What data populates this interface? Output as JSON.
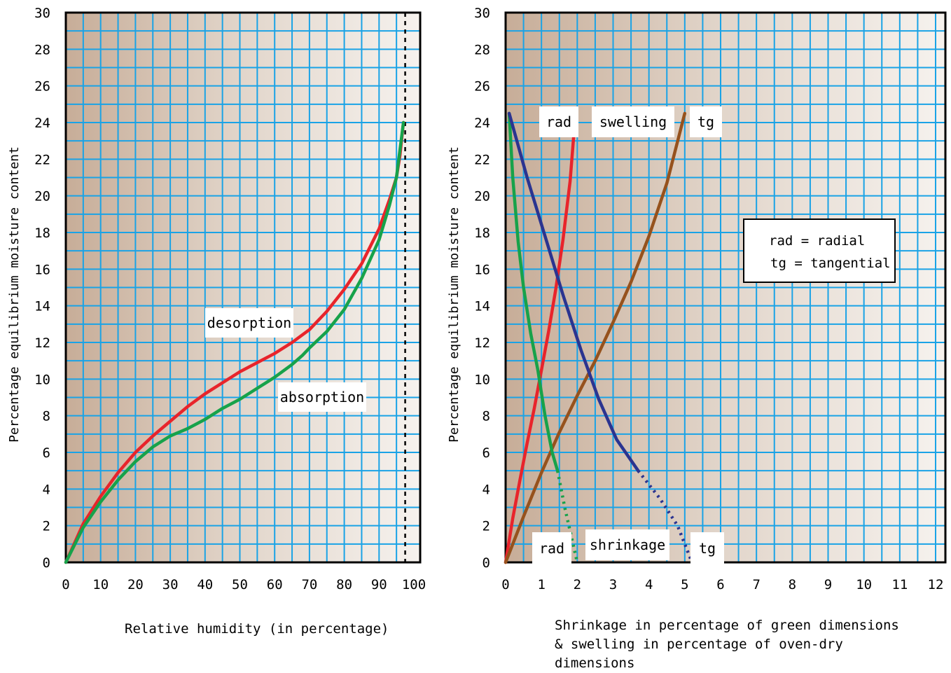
{
  "colors": {
    "grid": "#1aa3e6",
    "bg_left": "#c7ad98",
    "bg_right": "#f6f2ee",
    "red": "#e8242b",
    "green": "#17a24a",
    "navy": "#2b3490",
    "brown": "#96521d",
    "axis": "#000000"
  },
  "chart_data": [
    {
      "type": "line",
      "ylabel": "Percentage equilibrium moisture content",
      "xlabel": "Relative humidity (in percentage)",
      "xlim": [
        0,
        100
      ],
      "ylim": [
        0,
        30
      ],
      "x_ticks": [
        "0",
        "10",
        "20",
        "30",
        "40",
        "50",
        "60",
        "70",
        "80",
        "90",
        "100"
      ],
      "y_ticks": [
        "0",
        "2",
        "4",
        "6",
        "8",
        "10",
        "12",
        "14",
        "16",
        "18",
        "20",
        "22",
        "24",
        "26",
        "28",
        "30"
      ],
      "grid": true,
      "vertical_reference_x": 97.5,
      "series": [
        {
          "name": "desorption",
          "color": "red",
          "x": [
            0,
            5,
            10,
            15,
            20,
            25,
            30,
            35,
            40,
            45,
            50,
            55,
            60,
            65,
            70,
            75,
            80,
            85,
            90,
            93,
            95,
            96,
            97
          ],
          "y": [
            0,
            2.1,
            3.6,
            4.9,
            6.0,
            6.9,
            7.7,
            8.5,
            9.2,
            9.8,
            10.4,
            10.9,
            11.4,
            12.0,
            12.7,
            13.7,
            14.9,
            16.3,
            18.2,
            19.8,
            21.0,
            22.2,
            24.0
          ]
        },
        {
          "name": "absorption",
          "color": "green",
          "x": [
            0,
            5,
            10,
            15,
            20,
            25,
            30,
            35,
            40,
            45,
            50,
            55,
            60,
            65,
            68,
            70,
            75,
            80,
            85,
            90,
            93,
            95,
            97
          ],
          "y": [
            0,
            1.9,
            3.3,
            4.5,
            5.5,
            6.3,
            6.9,
            7.3,
            7.8,
            8.4,
            8.9,
            9.5,
            10.1,
            10.8,
            11.3,
            11.7,
            12.6,
            13.8,
            15.5,
            17.6,
            19.5,
            21.0,
            24.0
          ]
        }
      ],
      "annotations": [
        "desorption",
        "absorption"
      ]
    },
    {
      "type": "line",
      "ylabel": "Percentage equilibrium moisture content",
      "xlabel": "Shrinkage in percentage of green dimensions & swelling in percentage of oven-dry dimensions",
      "xlim": [
        0,
        12.5
      ],
      "ylim": [
        0,
        30
      ],
      "x_ticks": [
        "0",
        "1",
        "2",
        "3",
        "4",
        "5",
        "6",
        "7",
        "8",
        "9",
        "10",
        "11",
        "12"
      ],
      "y_ticks": [
        "0",
        "2",
        "4",
        "6",
        "8",
        "10",
        "12",
        "14",
        "16",
        "18",
        "20",
        "22",
        "24",
        "26",
        "28",
        "30"
      ],
      "grid": true,
      "legend_text": [
        "rad = radial",
        "tg = tangential"
      ],
      "legend_position": "right-middle",
      "series": [
        {
          "name": "rad swelling",
          "color": "red",
          "style": "solid",
          "x": [
            0,
            0.2,
            0.4,
            0.6,
            0.8,
            1.0,
            1.2,
            1.4,
            1.6,
            1.8,
            1.95
          ],
          "y": [
            0,
            2.4,
            4.5,
            6.5,
            8.4,
            10.5,
            12.6,
            14.9,
            17.6,
            20.8,
            24.5
          ]
        },
        {
          "name": "tg swelling",
          "color": "brown",
          "style": "solid",
          "x": [
            0,
            0.5,
            1.0,
            1.5,
            2.0,
            2.5,
            3.0,
            3.5,
            4.0,
            4.5,
            5.0
          ],
          "y": [
            0,
            2.5,
            4.9,
            7.1,
            9.1,
            11.0,
            13.1,
            15.3,
            17.8,
            20.7,
            24.5
          ]
        },
        {
          "name": "rad shrinkage",
          "color": "green",
          "style": "solid",
          "x": [
            0.1,
            0.2,
            0.35,
            0.5,
            0.7,
            0.9,
            1.1,
            1.3,
            1.45
          ],
          "y": [
            24.5,
            21.0,
            17.5,
            15.0,
            12.5,
            10.5,
            8.0,
            6.0,
            5.0
          ]
        },
        {
          "name": "rad shrinkage (extrapolated)",
          "color": "green",
          "style": "dotted",
          "x": [
            1.45,
            1.65,
            2.0
          ],
          "y": [
            5.0,
            3.0,
            0
          ]
        },
        {
          "name": "tg shrinkage",
          "color": "navy",
          "style": "solid",
          "x": [
            0.1,
            0.6,
            1.1,
            1.6,
            2.1,
            2.6,
            3.1,
            3.7
          ],
          "y": [
            24.5,
            21.0,
            17.8,
            14.6,
            11.6,
            8.9,
            6.7,
            5.0
          ]
        },
        {
          "name": "tg shrinkage (extrapolated)",
          "color": "navy",
          "style": "dotted",
          "x": [
            3.7,
            4.3,
            4.8,
            5.2
          ],
          "y": [
            5.0,
            3.5,
            2.0,
            0
          ]
        }
      ],
      "annotations": [
        "rad",
        "swelling",
        "tg",
        "rad",
        "shrinkage",
        "tg"
      ]
    }
  ]
}
